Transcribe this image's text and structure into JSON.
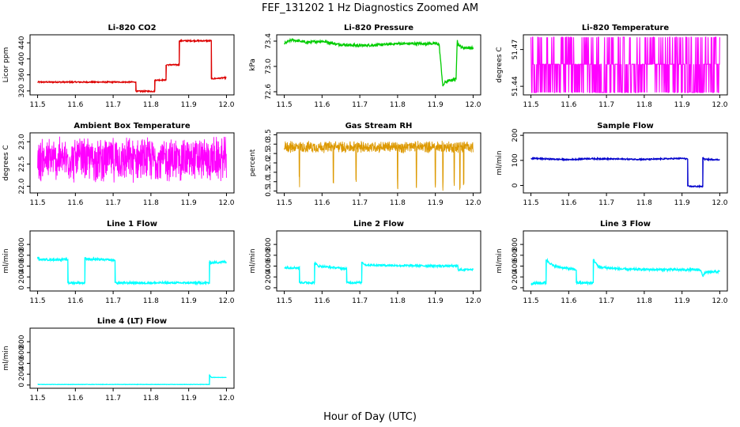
{
  "figure": {
    "title": "FEF_131202  1 Hz Diagnostics Zoomed AM",
    "xlabel": "Hour of Day (UTC)"
  },
  "chart_data": [
    {
      "type": "line",
      "title": "Li-820 CO2",
      "ylabel": "Licor ppm",
      "color": "#dd0000",
      "xlim": [
        11.48,
        12.02
      ],
      "ylim": [
        310,
        460
      ],
      "xticks": [
        11.5,
        11.6,
        11.7,
        11.8,
        11.9,
        12.0
      ],
      "xtick_labels": [
        "11.5",
        "11.6",
        "11.7",
        "11.8",
        "11.9",
        "12.0"
      ],
      "yticks": [
        320,
        360,
        400,
        440
      ],
      "ytick_labels": [
        "320",
        "360",
        "400",
        "440"
      ],
      "series": [
        {
          "noise": 1.5,
          "x": [
            11.5,
            11.76,
            11.76,
            11.81,
            11.81,
            11.84,
            11.84,
            11.875,
            11.875,
            11.96,
            11.96,
            12.0
          ],
          "y": [
            342,
            342,
            319,
            319,
            347,
            347,
            385,
            385,
            445,
            445,
            350,
            353
          ]
        }
      ]
    },
    {
      "type": "line",
      "title": "Li-820 Pressure",
      "ylabel": "kPa",
      "color": "#00cc00",
      "xlim": [
        11.48,
        12.02
      ],
      "ylim": [
        72.55,
        73.5
      ],
      "xticks": [
        11.5,
        11.6,
        11.7,
        11.8,
        11.9,
        12.0
      ],
      "xtick_labels": [
        "11.5",
        "11.6",
        "11.7",
        "11.8",
        "11.9",
        "12.0"
      ],
      "yticks": [
        72.6,
        73.0,
        73.4
      ],
      "ytick_labels": [
        "72.6",
        "73.0",
        "73.4"
      ],
      "series": [
        {
          "noise": 0.02,
          "x": [
            11.5,
            11.52,
            11.56,
            11.6,
            11.64,
            11.7,
            11.75,
            11.8,
            11.9,
            11.91,
            11.92,
            11.925,
            11.94,
            11.955,
            11.958,
            11.96,
            11.97,
            12.0
          ],
          "y": [
            73.36,
            73.42,
            73.38,
            73.4,
            73.35,
            73.33,
            73.34,
            73.36,
            73.36,
            73.35,
            72.68,
            72.75,
            72.78,
            72.8,
            73.45,
            73.35,
            73.3,
            73.29
          ]
        }
      ]
    },
    {
      "type": "spikes",
      "title": "Li-820 Temperature",
      "ylabel": "degrees C",
      "color": "#ff00ff",
      "xlim": [
        11.48,
        12.02
      ],
      "ylim": [
        51.433,
        51.482
      ],
      "xticks": [
        11.5,
        11.6,
        11.7,
        11.8,
        11.9,
        12.0
      ],
      "xtick_labels": [
        "11.5",
        "11.6",
        "11.7",
        "11.8",
        "11.9",
        "12.0"
      ],
      "yticks": [
        51.44,
        51.47
      ],
      "ytick_labels": [
        "51.44",
        "51.47"
      ],
      "series": [
        {
          "x_start": 11.5,
          "x_end": 12.0,
          "levels": [
            51.435,
            51.458,
            51.48
          ]
        }
      ]
    },
    {
      "type": "noise",
      "title": "Ambient Box Temperature",
      "ylabel": "degrees C",
      "color": "#ff00ff",
      "xlim": [
        11.48,
        12.02
      ],
      "ylim": [
        21.85,
        23.2
      ],
      "xticks": [
        11.5,
        11.6,
        11.7,
        11.8,
        11.9,
        12.0
      ],
      "xtick_labels": [
        "11.5",
        "11.6",
        "11.7",
        "11.8",
        "11.9",
        "12.0"
      ],
      "yticks": [
        22.0,
        22.5,
        23.0
      ],
      "ytick_labels": [
        "22.0",
        "22.5",
        "23.0"
      ],
      "series": [
        {
          "x_start": 11.5,
          "x_end": 12.0,
          "center": 22.6,
          "spread": 0.55
        }
      ]
    },
    {
      "type": "noise",
      "title": "Gas Stream RH",
      "ylabel": "percent",
      "color": "#dd9900",
      "xlim": [
        11.48,
        12.02
      ],
      "ylim": [
        0.4,
        3.6
      ],
      "xticks": [
        11.5,
        11.6,
        11.7,
        11.8,
        11.9,
        12.0
      ],
      "xtick_labels": [
        "11.5",
        "11.6",
        "11.7",
        "11.8",
        "11.9",
        "12.0"
      ],
      "yticks": [
        0.5,
        1.0,
        1.5,
        2.0,
        2.5,
        3.0,
        3.5
      ],
      "ytick_labels": [
        "0.5",
        "1.0",
        "1.5",
        "2.0",
        "2.5",
        "3.0",
        "3.5"
      ],
      "series": [
        {
          "x_start": 11.5,
          "x_end": 12.0,
          "center": 2.85,
          "spread": 0.35,
          "dips": [
            11.54,
            11.63,
            11.69,
            11.8,
            11.85,
            11.9,
            11.92,
            11.95,
            11.965,
            11.975
          ],
          "dip_to": 0.5
        }
      ]
    },
    {
      "type": "line",
      "title": "Sample Flow",
      "ylabel": "ml/min",
      "color": "#0000cc",
      "xlim": [
        11.48,
        12.02
      ],
      "ylim": [
        -30,
        210
      ],
      "xticks": [
        11.5,
        11.6,
        11.7,
        11.8,
        11.9,
        12.0
      ],
      "xtick_labels": [
        "11.5",
        "11.6",
        "11.7",
        "11.8",
        "11.9",
        "12.0"
      ],
      "yticks": [
        0,
        100,
        200
      ],
      "ytick_labels": [
        "0",
        "100",
        "200"
      ],
      "series": [
        {
          "noise": 2.5,
          "x": [
            11.5,
            11.6,
            11.65,
            11.7,
            11.8,
            11.9,
            11.915,
            11.915,
            11.955,
            11.955,
            11.96,
            12.0
          ],
          "y": [
            108,
            103,
            107,
            106,
            104,
            108,
            106,
            -4,
            -4,
            112,
            104,
            103
          ]
        }
      ]
    },
    {
      "type": "line",
      "title": "Line 1 Flow",
      "ylabel": "ml/min",
      "color": "#00ffff",
      "xlim": [
        11.48,
        12.02
      ],
      "ylim": [
        -60,
        1050
      ],
      "xticks": [
        11.5,
        11.6,
        11.7,
        11.8,
        11.9,
        12.0
      ],
      "xtick_labels": [
        "11.5",
        "11.6",
        "11.7",
        "11.8",
        "11.9",
        "12.0"
      ],
      "yticks": [
        0,
        200,
        400,
        600,
        800
      ],
      "ytick_labels": [
        "0",
        "200",
        "400",
        "600",
        "800"
      ],
      "series": [
        {
          "noise": 18,
          "x": [
            11.5,
            11.505,
            11.58,
            11.58,
            11.625,
            11.625,
            11.63,
            11.705,
            11.705,
            11.955,
            11.955,
            11.96,
            12.0
          ],
          "y": [
            560,
            520,
            520,
            90,
            90,
            560,
            530,
            510,
            90,
            90,
            480,
            460,
            480
          ]
        }
      ]
    },
    {
      "type": "line",
      "title": "Line 2 Flow",
      "ylabel": "ml/min",
      "color": "#00ffff",
      "xlim": [
        11.48,
        12.02
      ],
      "ylim": [
        -60,
        1050
      ],
      "xticks": [
        11.5,
        11.6,
        11.7,
        11.8,
        11.9,
        12.0
      ],
      "xtick_labels": [
        "11.5",
        "11.6",
        "11.7",
        "11.8",
        "11.9",
        "12.0"
      ],
      "yticks": [
        0,
        200,
        400,
        600,
        800
      ],
      "ytick_labels": [
        "0",
        "200",
        "400",
        "600",
        "800"
      ],
      "series": [
        {
          "noise": 18,
          "x": [
            11.5,
            11.54,
            11.54,
            11.58,
            11.58,
            11.59,
            11.665,
            11.665,
            11.705,
            11.705,
            11.715,
            11.8,
            11.96,
            11.96,
            12.0
          ],
          "y": [
            370,
            370,
            95,
            95,
            460,
            400,
            350,
            95,
            95,
            480,
            420,
            410,
            400,
            330,
            340
          ]
        }
      ]
    },
    {
      "type": "line",
      "title": "Line 3 Flow",
      "ylabel": "ml/min",
      "color": "#00ffff",
      "xlim": [
        11.48,
        12.02
      ],
      "ylim": [
        -60,
        1050
      ],
      "xticks": [
        11.5,
        11.6,
        11.7,
        11.8,
        11.9,
        12.0
      ],
      "xtick_labels": [
        "11.5",
        "11.6",
        "11.7",
        "11.8",
        "11.9",
        "12.0"
      ],
      "yticks": [
        0,
        200,
        400,
        600,
        800
      ],
      "ytick_labels": [
        "0",
        "200",
        "400",
        "600",
        "800"
      ],
      "series": [
        {
          "noise": 22,
          "x": [
            11.5,
            11.54,
            11.54,
            11.56,
            11.62,
            11.62,
            11.665,
            11.665,
            11.68,
            11.75,
            11.95,
            11.955,
            11.96,
            12.0
          ],
          "y": [
            80,
            90,
            520,
            400,
            330,
            90,
            90,
            520,
            380,
            340,
            330,
            200,
            280,
            300
          ]
        }
      ]
    },
    {
      "type": "line",
      "title": "Line 4 (LT) Flow",
      "ylabel": "ml/min",
      "color": "#00ffff",
      "xlim": [
        11.48,
        12.02
      ],
      "ylim": [
        -60,
        1050
      ],
      "xticks": [
        11.5,
        11.6,
        11.7,
        11.8,
        11.9,
        12.0
      ],
      "xtick_labels": [
        "11.5",
        "11.6",
        "11.7",
        "11.8",
        "11.9",
        "12.0"
      ],
      "yticks": [
        0,
        200,
        400,
        600,
        800
      ],
      "ytick_labels": [
        "0",
        "200",
        "400",
        "600",
        "800"
      ],
      "series": [
        {
          "noise": 3,
          "x": [
            11.5,
            11.955,
            11.955,
            11.96,
            12.0
          ],
          "y": [
            10,
            10,
            190,
            140,
            140
          ]
        }
      ]
    }
  ]
}
